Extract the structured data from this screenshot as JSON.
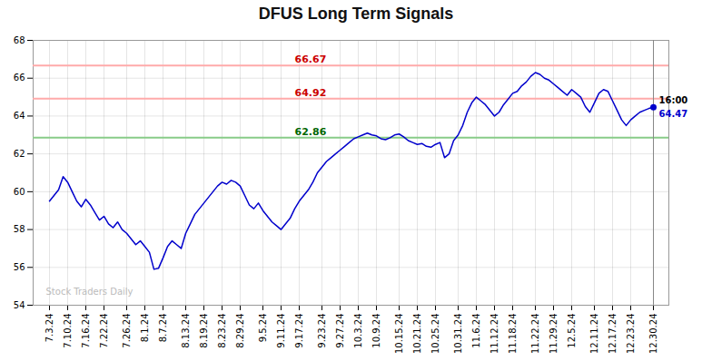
{
  "chart_data": {
    "type": "line",
    "title": "DFUS Long Term Signals",
    "categories": [
      "7.3.24",
      null,
      null,
      null,
      "7.10.24",
      null,
      null,
      null,
      "7.16.24",
      null,
      null,
      null,
      "7.22.24",
      null,
      null,
      null,
      null,
      "7.26.24",
      null,
      null,
      null,
      "8.1.24",
      null,
      null,
      null,
      "8.7.24",
      null,
      null,
      null,
      null,
      "8.13.24",
      null,
      null,
      null,
      "8.19.24",
      null,
      null,
      null,
      "8.23.24",
      null,
      null,
      null,
      "8.29.24",
      null,
      null,
      null,
      null,
      "9.5.24",
      null,
      null,
      null,
      "9.11.24",
      null,
      null,
      null,
      "9.17.24",
      null,
      null,
      null,
      null,
      "9.23.24",
      null,
      null,
      null,
      "9.27.24",
      null,
      null,
      null,
      "10.3.24",
      null,
      null,
      null,
      "10.9.24",
      null,
      null,
      null,
      null,
      "10.15.24",
      null,
      null,
      null,
      "10.21.24",
      null,
      null,
      null,
      "10.25.24",
      null,
      null,
      null,
      null,
      "10.31.24",
      null,
      null,
      null,
      "11.6.24",
      null,
      null,
      null,
      "11.12.24",
      null,
      null,
      null,
      "11.18.24",
      null,
      null,
      null,
      null,
      "11.22.24",
      null,
      null,
      null,
      "11.29.24",
      null,
      null,
      null,
      "12.5.24",
      null,
      null,
      null,
      null,
      "12.11.24",
      null,
      null,
      null,
      "12.17.24",
      null,
      null,
      null,
      "12.23.24",
      null,
      null,
      null,
      null,
      "12.30.24"
    ],
    "values": [
      59.5,
      59.8,
      60.1,
      60.8,
      60.5,
      60.0,
      59.5,
      59.2,
      59.6,
      59.3,
      58.9,
      58.5,
      58.7,
      58.3,
      58.1,
      58.4,
      58.0,
      57.8,
      57.5,
      57.2,
      57.4,
      57.1,
      56.8,
      55.9,
      55.95,
      56.5,
      57.1,
      57.4,
      57.2,
      57.0,
      57.8,
      58.3,
      58.8,
      59.1,
      59.4,
      59.7,
      60.0,
      60.3,
      60.5,
      60.4,
      60.6,
      60.5,
      60.3,
      59.8,
      59.3,
      59.1,
      59.4,
      59.0,
      58.7,
      58.4,
      58.2,
      58.0,
      58.3,
      58.6,
      59.1,
      59.5,
      59.8,
      60.1,
      60.5,
      61.0,
      61.3,
      61.6,
      61.8,
      62.0,
      62.2,
      62.4,
      62.6,
      62.8,
      62.9,
      63.0,
      63.1,
      63.0,
      62.95,
      62.8,
      62.75,
      62.85,
      63.0,
      63.05,
      62.9,
      62.7,
      62.6,
      62.5,
      62.55,
      62.4,
      62.35,
      62.5,
      62.6,
      61.8,
      62.0,
      62.7,
      63.0,
      63.5,
      64.2,
      64.7,
      65.0,
      64.8,
      64.6,
      64.3,
      64.0,
      64.2,
      64.6,
      64.9,
      65.2,
      65.3,
      65.6,
      65.8,
      66.1,
      66.3,
      66.2,
      66.0,
      65.9,
      65.7,
      65.5,
      65.3,
      65.1,
      65.4,
      65.2,
      65.0,
      64.5,
      64.2,
      64.7,
      65.2,
      65.4,
      65.3,
      64.8,
      64.3,
      63.8,
      63.5,
      63.8,
      64.0,
      64.2,
      64.3,
      64.4,
      64.47
    ],
    "color": "#0000cc",
    "ylim": [
      54,
      68
    ],
    "yticks": [
      54,
      56,
      58,
      60,
      62,
      64,
      66,
      68
    ],
    "grid": true,
    "hlines": [
      {
        "value": 66.67,
        "label": "66.67",
        "color": "#ffaaaa",
        "label_color": "#cc0000"
      },
      {
        "value": 64.92,
        "label": "64.92",
        "color": "#ffaaaa",
        "label_color": "#cc0000"
      },
      {
        "value": 62.86,
        "label": "62.86",
        "color": "#88cc88",
        "label_color": "#006600"
      }
    ],
    "annotations": [
      {
        "text": "16:00",
        "color": "#000000"
      },
      {
        "text": "64.47",
        "color": "#0000cc"
      }
    ],
    "watermark": {
      "text": "Stock Traders Daily",
      "color": "#bbbbbb"
    }
  }
}
